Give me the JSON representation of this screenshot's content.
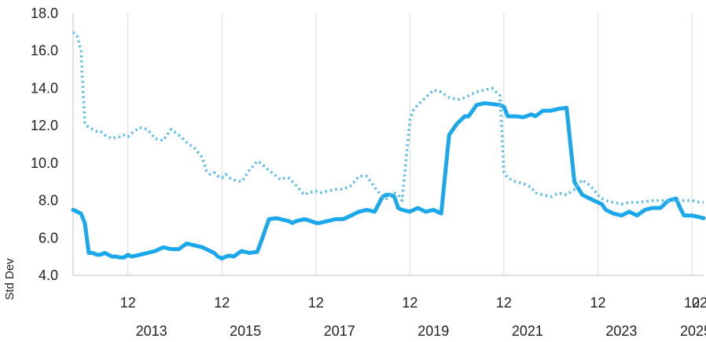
{
  "chart_data": {
    "type": "line",
    "title": "",
    "xlabel": "",
    "ylabel": "Std Dev",
    "ylim": [
      4.0,
      18.0
    ],
    "yticks": [
      "4.0",
      "6.0",
      "8.0",
      "10.0",
      "12.0",
      "14.0",
      "16.0",
      "18.0"
    ],
    "xlim": [
      "2011-10",
      "2025-03"
    ],
    "x_month_ticks": [
      {
        "date": "2012-12",
        "label": "12"
      },
      {
        "date": "2014-12",
        "label": "12"
      },
      {
        "date": "2016-12",
        "label": "12"
      },
      {
        "date": "2018-12",
        "label": "12"
      },
      {
        "date": "2020-12",
        "label": "12"
      },
      {
        "date": "2022-12",
        "label": "12"
      },
      {
        "date": "2024-12",
        "label": "12"
      },
      {
        "date": "2025-02",
        "label": "02"
      }
    ],
    "x_year_labels": [
      {
        "date": "2013-06",
        "label": "2013"
      },
      {
        "date": "2015-06",
        "label": "2015"
      },
      {
        "date": "2017-06",
        "label": "2017"
      },
      {
        "date": "2019-06",
        "label": "2019"
      },
      {
        "date": "2021-06",
        "label": "2021"
      },
      {
        "date": "2023-06",
        "label": "2023"
      },
      {
        "date": "2025-01",
        "label": "2025"
      }
    ],
    "grid": "vertical",
    "colors": {
      "line": "#1aa7ec",
      "dotted": "#5cbde8",
      "grid": "#d9d9d9",
      "axis": "#bfbfbf",
      "text": "#222222"
    },
    "series": [
      {
        "style": "solid",
        "x": [
          "2011-10",
          "2011-11",
          "2011-12",
          "2012-01",
          "2012-02",
          "2012-03",
          "2012-04",
          "2012-05",
          "2012-06",
          "2012-07",
          "2012-08",
          "2012-09",
          "2012-10",
          "2012-11",
          "2012-12",
          "2013-01",
          "2013-03",
          "2013-05",
          "2013-07",
          "2013-09",
          "2013-11",
          "2014-01",
          "2014-03",
          "2014-05",
          "2014-07",
          "2014-08",
          "2014-09",
          "2014-10",
          "2014-11",
          "2014-12",
          "2015-01",
          "2015-02",
          "2015-03",
          "2015-05",
          "2015-07",
          "2015-09",
          "2015-10",
          "2015-12",
          "2016-02",
          "2016-03",
          "2016-04",
          "2016-05",
          "2016-06",
          "2016-07",
          "2016-09",
          "2016-10",
          "2016-12",
          "2017-01",
          "2017-03",
          "2017-05",
          "2017-07",
          "2017-09",
          "2017-11",
          "2018-01",
          "2018-03",
          "2018-05",
          "2018-06",
          "2018-07",
          "2018-08",
          "2018-09",
          "2018-10",
          "2018-12",
          "2019-01",
          "2019-02",
          "2019-04",
          "2019-06",
          "2019-08",
          "2019-10",
          "2019-12",
          "2020-01",
          "2020-02",
          "2020-03",
          "2020-05",
          "2020-07",
          "2020-09",
          "2020-11",
          "2020-12",
          "2021-01",
          "2021-03",
          "2021-05",
          "2021-07",
          "2021-08",
          "2021-10",
          "2021-12",
          "2022-02",
          "2022-04",
          "2022-06",
          "2022-08",
          "2022-10",
          "2022-12",
          "2023-01",
          "2023-02",
          "2023-04",
          "2023-06",
          "2023-08",
          "2023-10",
          "2023-12",
          "2024-02",
          "2024-04",
          "2024-06",
          "2024-08",
          "2024-09",
          "2024-10",
          "2024-12",
          "2025-02",
          "2025-03"
        ],
        "values": [
          7.5,
          7.4,
          7.3,
          6.8,
          5.2,
          5.2,
          5.1,
          5.1,
          5.2,
          5.1,
          5.0,
          5.0,
          4.95,
          4.95,
          5.1,
          5.0,
          5.1,
          5.2,
          5.3,
          5.5,
          5.4,
          5.4,
          5.7,
          5.6,
          5.5,
          5.4,
          5.3,
          5.2,
          5.0,
          4.9,
          5.0,
          5.05,
          5.0,
          5.3,
          5.2,
          5.25,
          5.8,
          7.0,
          7.05,
          7.0,
          6.95,
          6.9,
          6.8,
          6.9,
          7.0,
          6.95,
          6.8,
          6.8,
          6.9,
          7.0,
          7.0,
          7.2,
          7.4,
          7.5,
          7.4,
          8.2,
          8.3,
          8.3,
          8.2,
          7.6,
          7.5,
          7.4,
          7.5,
          7.6,
          7.4,
          7.5,
          7.3,
          11.5,
          12.1,
          12.3,
          12.5,
          12.5,
          13.1,
          13.2,
          13.15,
          13.1,
          13.0,
          12.5,
          12.5,
          12.45,
          12.6,
          12.5,
          12.8,
          12.8,
          12.9,
          12.95,
          9.0,
          8.3,
          8.1,
          7.9,
          7.8,
          7.5,
          7.3,
          7.2,
          7.4,
          7.2,
          7.5,
          7.6,
          7.6,
          8.0,
          8.1,
          7.6,
          7.2,
          7.2,
          7.1,
          7.05
        ],
        "x_note": "values listed in chronological order"
      },
      {
        "style": "dotted",
        "x": [
          "2011-10",
          "2011-11",
          "2011-12",
          "2012-01",
          "2012-02",
          "2012-03",
          "2012-04",
          "2012-05",
          "2012-06",
          "2012-07",
          "2012-08",
          "2012-09",
          "2012-10",
          "2012-11",
          "2012-12",
          "2013-01",
          "2013-03",
          "2013-05",
          "2013-07",
          "2013-09",
          "2013-11",
          "2014-01",
          "2014-03",
          "2014-05",
          "2014-07",
          "2014-08",
          "2014-09",
          "2014-10",
          "2014-11",
          "2014-12",
          "2015-01",
          "2015-02",
          "2015-03",
          "2015-05",
          "2015-07",
          "2015-09",
          "2015-10",
          "2015-12",
          "2016-02",
          "2016-03",
          "2016-04",
          "2016-05",
          "2016-06",
          "2016-07",
          "2016-09",
          "2016-10",
          "2016-12",
          "2017-01",
          "2017-03",
          "2017-05",
          "2017-07",
          "2017-09",
          "2017-11",
          "2018-01",
          "2018-03",
          "2018-05",
          "2018-06",
          "2018-07",
          "2018-08",
          "2018-09",
          "2018-10",
          "2018-12",
          "2019-01",
          "2019-02",
          "2019-04",
          "2019-06",
          "2019-08",
          "2019-10",
          "2019-12",
          "2020-01",
          "2020-02",
          "2020-03",
          "2020-05",
          "2020-07",
          "2020-09",
          "2020-11",
          "2020-12",
          "2021-01",
          "2021-03",
          "2021-05",
          "2021-07",
          "2021-08",
          "2021-10",
          "2021-12",
          "2022-02",
          "2022-04",
          "2022-06",
          "2022-08",
          "2022-10",
          "2022-12",
          "2023-01",
          "2023-02",
          "2023-04",
          "2023-06",
          "2023-08",
          "2023-10",
          "2023-12",
          "2024-02",
          "2024-04",
          "2024-06",
          "2024-08",
          "2024-09",
          "2024-10",
          "2024-12",
          "2025-02",
          "2025-03"
        ],
        "values": [
          17.0,
          16.8,
          16.0,
          12.1,
          11.9,
          11.8,
          11.7,
          11.7,
          11.5,
          11.4,
          11.3,
          11.4,
          11.4,
          11.5,
          11.4,
          11.6,
          11.9,
          11.8,
          11.3,
          11.2,
          11.8,
          11.5,
          11.1,
          10.8,
          10.3,
          9.6,
          9.4,
          9.5,
          9.3,
          9.2,
          9.4,
          9.2,
          9.1,
          9.0,
          9.6,
          10.1,
          10.0,
          9.6,
          9.3,
          9.1,
          9.2,
          9.2,
          9.0,
          8.8,
          8.3,
          8.4,
          8.5,
          8.4,
          8.5,
          8.6,
          8.6,
          8.8,
          9.3,
          9.3,
          8.7,
          8.2,
          8.1,
          8.3,
          8.4,
          8.3,
          8.0,
          12.3,
          12.9,
          13.1,
          13.5,
          13.9,
          13.8,
          13.5,
          13.4,
          13.4,
          13.5,
          13.6,
          13.8,
          13.9,
          14.0,
          13.6,
          9.5,
          9.2,
          9.0,
          8.9,
          8.7,
          8.4,
          8.3,
          8.2,
          8.4,
          8.3,
          8.6,
          9.1,
          8.8,
          8.3,
          8.1,
          8.0,
          7.9,
          7.8,
          7.9,
          7.9,
          7.95,
          8.0,
          8.0,
          8.0,
          8.0,
          8.0,
          8.0,
          8.0,
          7.9,
          7.9
        ],
        "x_note": "values listed in chronological order"
      }
    ]
  }
}
